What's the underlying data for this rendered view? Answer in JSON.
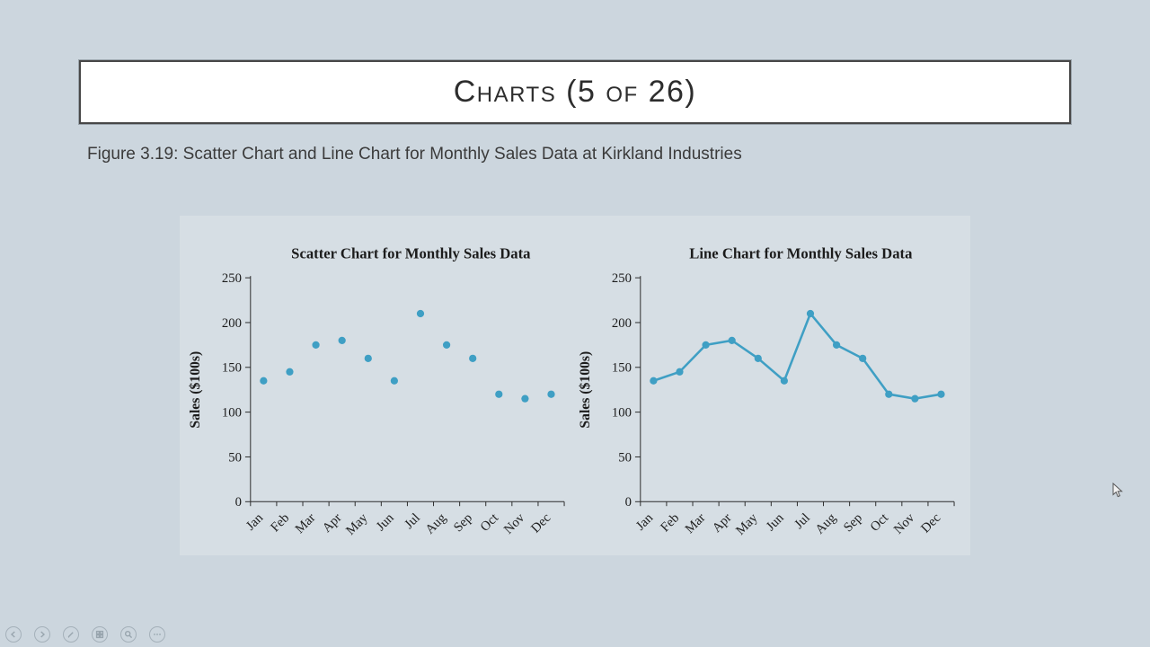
{
  "slide": {
    "title": "Charts (5 of 26)",
    "caption": "Figure 3.19: Scatter Chart and Line Chart for Monthly Sales Data at Kirkland Industries"
  },
  "toolbar": {
    "buttons": [
      {
        "name": "previous-slide",
        "icon": "previous-arrow-icon"
      },
      {
        "name": "next-slide",
        "icon": "next-arrow-icon"
      },
      {
        "name": "pen",
        "icon": "pen-icon"
      },
      {
        "name": "see-all-slides",
        "icon": "grid-icon"
      },
      {
        "name": "zoom",
        "icon": "magnifier-icon"
      },
      {
        "name": "more-options",
        "icon": "ellipsis-icon"
      }
    ]
  },
  "chart_data": [
    {
      "type": "scatter",
      "title": "Scatter Chart for Monthly Sales Data",
      "categories": [
        "Jan",
        "Feb",
        "Mar",
        "Apr",
        "May",
        "Jun",
        "Jul",
        "Aug",
        "Sep",
        "Oct",
        "Nov",
        "Dec"
      ],
      "values": [
        135,
        145,
        175,
        180,
        160,
        135,
        210,
        175,
        160,
        120,
        115,
        120
      ],
      "xlabel": "",
      "ylabel": "Sales ($100s)",
      "ylim": [
        0,
        250
      ],
      "ytick_interval": 50,
      "grid": false,
      "legend": false,
      "marker_color": "#3f9fc4"
    },
    {
      "type": "line",
      "title": "Line Chart for Monthly Sales Data",
      "categories": [
        "Jan",
        "Feb",
        "Mar",
        "Apr",
        "May",
        "Jun",
        "Jul",
        "Aug",
        "Sep",
        "Oct",
        "Nov",
        "Dec"
      ],
      "values": [
        135,
        145,
        175,
        180,
        160,
        135,
        210,
        175,
        160,
        120,
        115,
        120
      ],
      "xlabel": "",
      "ylabel": "Sales ($100s)",
      "ylim": [
        0,
        250
      ],
      "ytick_interval": 50,
      "grid": false,
      "legend": false,
      "marker_color": "#3f9fc4"
    }
  ]
}
